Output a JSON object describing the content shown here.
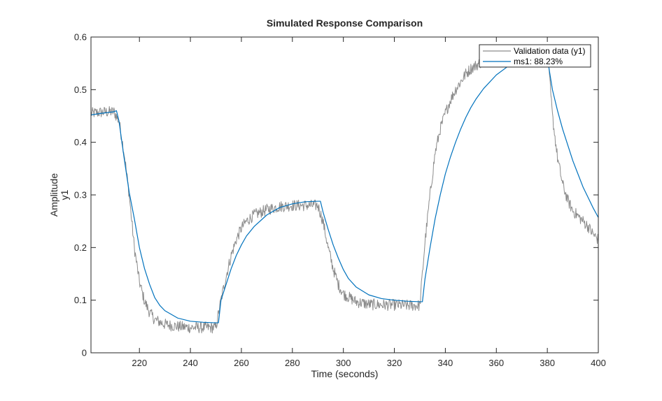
{
  "chart_data": {
    "type": "line",
    "title": "Simulated Response Comparison",
    "xlabel": "Time (seconds)",
    "ylabel": "Amplitude",
    "channel_label": "y1",
    "xlim": [
      201,
      400
    ],
    "ylim": [
      0,
      0.6
    ],
    "xticks": [
      220,
      240,
      260,
      280,
      300,
      320,
      340,
      360,
      380,
      400
    ],
    "yticks": [
      0,
      0.1,
      0.2,
      0.3,
      0.4,
      0.5,
      0.6
    ],
    "xtick_labels": [
      "220",
      "240",
      "260",
      "280",
      "300",
      "320",
      "340",
      "360",
      "380",
      "400"
    ],
    "ytick_labels": [
      "0",
      "0.1",
      "0.2",
      "0.3",
      "0.4",
      "0.5",
      "0.6"
    ],
    "grid": false,
    "legend_position": "top-right",
    "series": [
      {
        "name": "Validation data (y1)",
        "color": "#8c8c8c",
        "noisy": true,
        "x": [
          201,
          205,
          210,
          212,
          214,
          216,
          218,
          220,
          222,
          224,
          226,
          230,
          235,
          240,
          245,
          250,
          252,
          254,
          256,
          258,
          260,
          262,
          265,
          270,
          275,
          280,
          285,
          290,
          292,
          294,
          296,
          298,
          300,
          305,
          310,
          315,
          320,
          325,
          330,
          332,
          334,
          336,
          338,
          340,
          342,
          344,
          346,
          348,
          350,
          355,
          360,
          365,
          370,
          375,
          378,
          380,
          382,
          384,
          386,
          388,
          390,
          392,
          394,
          396,
          398,
          400
        ],
        "y": [
          0.455,
          0.457,
          0.458,
          0.44,
          0.38,
          0.3,
          0.2,
          0.135,
          0.098,
          0.077,
          0.063,
          0.054,
          0.05,
          0.048,
          0.048,
          0.048,
          0.1,
          0.145,
          0.185,
          0.215,
          0.237,
          0.25,
          0.262,
          0.272,
          0.278,
          0.28,
          0.28,
          0.28,
          0.25,
          0.2,
          0.16,
          0.13,
          0.112,
          0.097,
          0.092,
          0.091,
          0.091,
          0.09,
          0.09,
          0.21,
          0.3,
          0.38,
          0.425,
          0.455,
          0.48,
          0.5,
          0.515,
          0.53,
          0.54,
          0.555,
          0.565,
          0.57,
          0.572,
          0.573,
          0.573,
          0.573,
          0.45,
          0.37,
          0.32,
          0.29,
          0.27,
          0.26,
          0.25,
          0.24,
          0.225,
          0.215
        ]
      },
      {
        "name": "ms1: 88.23%",
        "color": "#0072bd",
        "noisy": false,
        "x": [
          201,
          205,
          210,
          211,
          212,
          214,
          216,
          218,
          220,
          222,
          224,
          226,
          228,
          230,
          235,
          240,
          245,
          250,
          251,
          252,
          254,
          256,
          258,
          260,
          262,
          265,
          270,
          275,
          280,
          285,
          290,
          291,
          292,
          294,
          296,
          298,
          300,
          302,
          305,
          310,
          315,
          320,
          325,
          330,
          331,
          332,
          334,
          336,
          338,
          340,
          342,
          344,
          346,
          348,
          350,
          352,
          355,
          360,
          365,
          370,
          372,
          375,
          378,
          380,
          382,
          384,
          386,
          388,
          390,
          392,
          394,
          396,
          398,
          400
        ],
        "y": [
          0.452,
          0.455,
          0.458,
          0.46,
          0.44,
          0.37,
          0.305,
          0.255,
          0.2,
          0.16,
          0.13,
          0.105,
          0.09,
          0.08,
          0.066,
          0.06,
          0.058,
          0.057,
          0.057,
          0.1,
          0.13,
          0.16,
          0.185,
          0.205,
          0.222,
          0.24,
          0.262,
          0.276,
          0.283,
          0.287,
          0.288,
          0.288,
          0.268,
          0.235,
          0.205,
          0.18,
          0.158,
          0.141,
          0.125,
          0.11,
          0.103,
          0.1,
          0.098,
          0.097,
          0.097,
          0.14,
          0.2,
          0.255,
          0.3,
          0.34,
          0.372,
          0.4,
          0.425,
          0.447,
          0.466,
          0.482,
          0.502,
          0.528,
          0.546,
          0.556,
          0.558,
          0.56,
          0.56,
          0.56,
          0.5,
          0.46,
          0.425,
          0.395,
          0.365,
          0.34,
          0.315,
          0.295,
          0.275,
          0.257
        ]
      }
    ]
  }
}
